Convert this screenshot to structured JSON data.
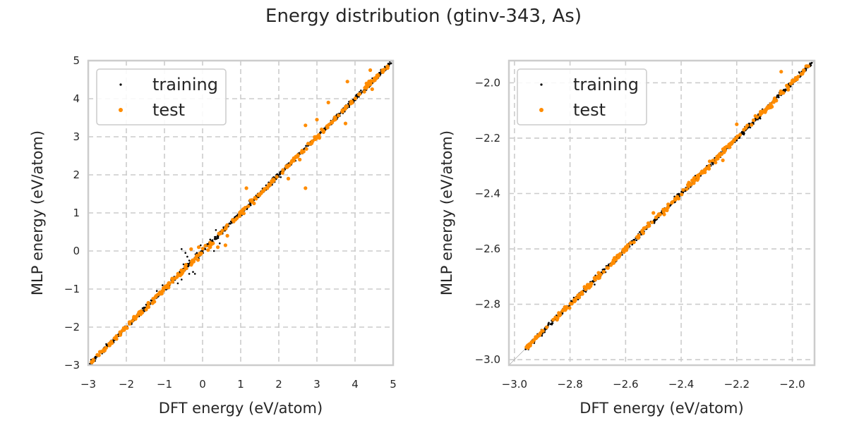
{
  "figure": {
    "title": "Energy distribution (gtinv-343, As)"
  },
  "colors": {
    "training": "#000000",
    "test": "#ff8c00",
    "grid": "#cccccc",
    "frame": "#cccccc",
    "legend_border": "#cccccc",
    "diagonal": "#999999"
  },
  "chart_data": [
    {
      "type": "scatter",
      "xlabel": "DFT energy (eV/atom)",
      "ylabel": "MLP energy (eV/atom)",
      "xlim": [
        -3,
        5
      ],
      "ylim": [
        -3,
        5
      ],
      "xticks": [
        -3,
        -2,
        -1,
        0,
        1,
        2,
        3,
        4,
        5
      ],
      "yticks": [
        -3,
        -2,
        -1,
        0,
        1,
        2,
        3,
        4,
        5
      ],
      "grid": true,
      "legend_position": "upper-left",
      "series": [
        {
          "name": "training",
          "color": "#000000",
          "trend": [
            [
              -2.95,
              -2.95
            ],
            [
              4.95,
              4.95
            ]
          ],
          "outliers": [
            [
              -0.55,
              0.05
            ],
            [
              -0.45,
              -0.05
            ],
            [
              -0.3,
              0.05
            ],
            [
              -0.35,
              -0.25
            ],
            [
              -0.5,
              -0.35
            ],
            [
              -0.25,
              -0.55
            ],
            [
              -0.2,
              -0.6
            ],
            [
              -0.6,
              -0.55
            ],
            [
              -0.45,
              -0.4
            ],
            [
              -0.05,
              0.15
            ],
            [
              -0.1,
              -0.2
            ],
            [
              0.2,
              0.3
            ],
            [
              0.45,
              0.2
            ],
            [
              0.65,
              0.4
            ],
            [
              0.3,
              0.0
            ],
            [
              -0.55,
              -0.75
            ],
            [
              -0.65,
              -0.85
            ],
            [
              -0.35,
              -0.6
            ],
            [
              -0.4,
              -0.15
            ],
            [
              -0.15,
              -0.05
            ],
            [
              1.25,
              1.25
            ],
            [
              1.6,
              1.55
            ],
            [
              2.0,
              1.95
            ],
            [
              2.6,
              2.65
            ],
            [
              3.0,
              3.0
            ],
            [
              4.1,
              4.05
            ],
            [
              4.6,
              4.6
            ],
            [
              0.35,
              0.55
            ],
            [
              -1.05,
              -0.9
            ],
            [
              -1.2,
              -1.05
            ],
            [
              0.6,
              0.55
            ],
            [
              0.85,
              0.8
            ]
          ]
        },
        {
          "name": "test",
          "color": "#ff8c00",
          "trend": [
            [
              -2.95,
              -2.95
            ],
            [
              4.85,
              4.85
            ]
          ],
          "outliers": [
            [
              2.7,
              1.65
            ],
            [
              2.7,
              3.3
            ],
            [
              3.0,
              3.45
            ],
            [
              3.3,
              3.9
            ],
            [
              3.75,
              3.35
            ],
            [
              3.8,
              4.45
            ],
            [
              4.4,
              4.75
            ],
            [
              4.45,
              4.25
            ],
            [
              4.3,
              4.4
            ],
            [
              1.15,
              1.65
            ],
            [
              1.7,
              1.65
            ],
            [
              2.55,
              2.4
            ],
            [
              0.65,
              0.4
            ],
            [
              0.6,
              0.15
            ],
            [
              0.4,
              0.1
            ],
            [
              0.2,
              0.1
            ],
            [
              -0.1,
              0.1
            ],
            [
              1.35,
              1.25
            ],
            [
              2.2,
              2.2
            ],
            [
              3.05,
              3.05
            ],
            [
              2.25,
              1.9
            ],
            [
              -0.3,
              0.05
            ]
          ]
        }
      ]
    },
    {
      "type": "scatter",
      "xlabel": "DFT energy (eV/atom)",
      "ylabel": "MLP energy (eV/atom)",
      "xlim": [
        -3.02,
        -1.92
      ],
      "ylim": [
        -3.02,
        -1.92
      ],
      "xticks": [
        -3.0,
        -2.8,
        -2.6,
        -2.4,
        -2.2,
        -2.0
      ],
      "yticks": [
        -3.0,
        -2.8,
        -2.6,
        -2.4,
        -2.2,
        -2.0
      ],
      "grid": true,
      "legend_position": "upper-left",
      "series": [
        {
          "name": "training",
          "color": "#000000",
          "trend": [
            [
              -2.96,
              -2.96
            ],
            [
              -1.93,
              -1.93
            ]
          ],
          "outliers": []
        },
        {
          "name": "test",
          "color": "#ff8c00",
          "trend": [
            [
              -2.96,
              -2.96
            ],
            [
              -1.93,
              -1.93
            ]
          ],
          "outliers": [
            [
              -2.04,
              -1.96
            ],
            [
              -2.02,
              -2.01
            ],
            [
              -1.95,
              -1.94
            ],
            [
              -2.2,
              -2.15
            ],
            [
              -2.25,
              -2.28
            ],
            [
              -2.5,
              -2.47
            ]
          ]
        }
      ]
    }
  ],
  "panels": [
    {
      "xlabel": "DFT energy (eV/atom)",
      "ylabel": "MLP energy (eV/atom)",
      "legend": {
        "training": "training",
        "test": "test"
      },
      "xtick_labels": [
        "−3",
        "−2",
        "−1",
        "0",
        "1",
        "2",
        "3",
        "4",
        "5"
      ],
      "ytick_labels": [
        "−3",
        "−2",
        "−1",
        "0",
        "1",
        "2",
        "3",
        "4",
        "5"
      ]
    },
    {
      "xlabel": "DFT energy (eV/atom)",
      "ylabel": "MLP energy (eV/atom)",
      "legend": {
        "training": "training",
        "test": "test"
      },
      "xtick_labels": [
        "−3.0",
        "−2.8",
        "−2.6",
        "−2.4",
        "−2.2",
        "−2.0"
      ],
      "ytick_labels": [
        "−3.0",
        "−2.8",
        "−2.6",
        "−2.4",
        "−2.2",
        "−2.0"
      ]
    }
  ]
}
